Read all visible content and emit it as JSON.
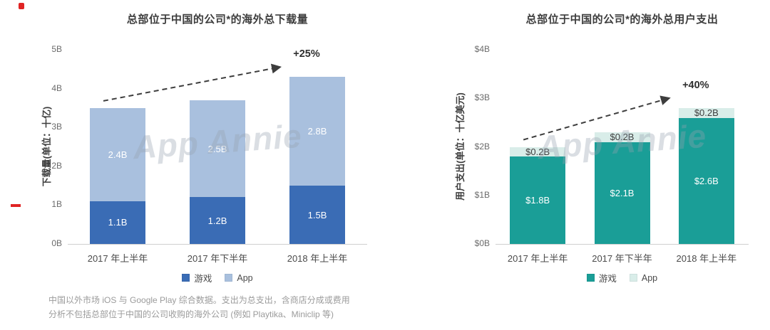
{
  "page": {
    "footnote_line1": "中国以外市场 iOS 与 Google Play 综合数据。支出为总支出，含商店分成或费用",
    "footnote_line2": "分析不包括总部位于中国的公司收购的海外公司 (例如 Playtika、Miniclip 等)"
  },
  "chart_data": [
    {
      "type": "bar",
      "stacked": true,
      "title": "总部位于中国的公司*的海外总下载量",
      "ylabel": "下载量(单位：十亿)",
      "categories": [
        "2017 年上半年",
        "2017 年下半年",
        "2018 年上半年"
      ],
      "series": [
        {
          "name": "游戏",
          "color": "#3a6cb5",
          "values": [
            1.1,
            1.2,
            1.5
          ],
          "labels": [
            "1.1B",
            "1.2B",
            "1.5B"
          ],
          "label_color": "#ffffff"
        },
        {
          "name": "App",
          "color": "#a9c0de",
          "values": [
            2.4,
            2.5,
            2.8
          ],
          "labels": [
            "2.4B",
            "2.5B",
            "2.8B"
          ],
          "label_color": "#ffffff"
        }
      ],
      "ylim": [
        0,
        5
      ],
      "yticks": [
        0,
        1,
        2,
        3,
        4,
        5
      ],
      "ytick_labels": [
        "0B",
        "1B",
        "2B",
        "3B",
        "4B",
        "5B"
      ],
      "annotation": "+25%",
      "grid": false,
      "legend_position": "bottom",
      "watermark": "App Annie"
    },
    {
      "type": "bar",
      "stacked": true,
      "title": "总部位于中国的公司*的海外总用户支出",
      "ylabel": "用户支出(单位：十亿美元)",
      "categories": [
        "2017 年上半年",
        "2017 年下半年",
        "2018 年上半年"
      ],
      "series": [
        {
          "name": "游戏",
          "color": "#1a9e97",
          "values": [
            1.8,
            2.1,
            2.6
          ],
          "labels": [
            "$1.8B",
            "$2.1B",
            "$2.6B"
          ],
          "label_color": "#ffffff"
        },
        {
          "name": "App",
          "color": "#d9ede9",
          "values": [
            0.2,
            0.2,
            0.2
          ],
          "labels": [
            "$0.2B",
            "$0.2B",
            "$0.2B"
          ],
          "label_color": "#3d3d3d"
        }
      ],
      "ylim": [
        0,
        4
      ],
      "yticks": [
        0,
        1,
        2,
        3,
        4
      ],
      "ytick_labels": [
        "$0B",
        "$1B",
        "$2B",
        "$3B",
        "$4B"
      ],
      "annotation": "+40%",
      "grid": false,
      "legend_position": "bottom",
      "watermark": "App Annie"
    }
  ]
}
